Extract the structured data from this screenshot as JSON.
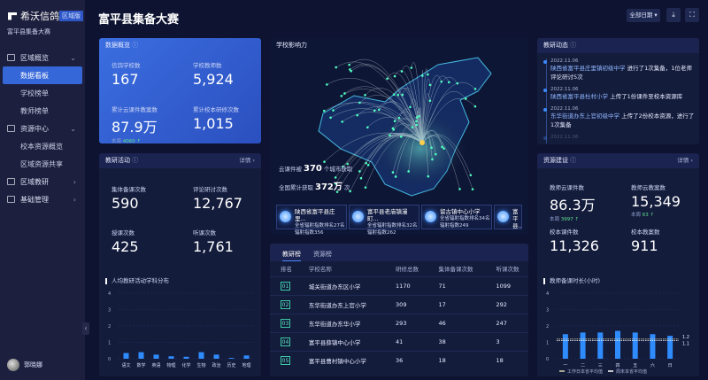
{
  "sidebar": {
    "brand": "希沃信鸽",
    "badge": "区域版",
    "subtitle": "富平县集备大赛",
    "groups": [
      {
        "label": "区域概览",
        "icon": "monitor-icon",
        "expanded": true,
        "items": [
          "数据看板",
          "学校榜单",
          "教师榜单"
        ]
      },
      {
        "label": "资源中心",
        "icon": "book-icon",
        "expanded": true,
        "items": [
          "校本资源概览",
          "区域资源共享"
        ]
      },
      {
        "label": "区域教研",
        "icon": "presenter-icon",
        "expanded": false,
        "items": []
      },
      {
        "label": "基础管理",
        "icon": "org-icon",
        "expanded": false,
        "items": []
      }
    ],
    "active_item": "数据看板",
    "user": "郭晓娜"
  },
  "header": {
    "title": "富平县集备大赛",
    "date_filter": "全部日期"
  },
  "overview": {
    "title": "数据概览",
    "stats": [
      {
        "label": "信鸽学校数",
        "value": "167"
      },
      {
        "label": "学校教师数",
        "value": "5,924"
      },
      {
        "label": "累计云课件教案数",
        "value": "87.9万",
        "week_label": "本周",
        "week_value": "4060"
      },
      {
        "label": "累计校本研修次数",
        "value": "1,015"
      }
    ]
  },
  "activity": {
    "title": "教研活动",
    "more": "详情",
    "stats": [
      {
        "label": "集体备课次数",
        "value": "590"
      },
      {
        "label": "评论研讨次数",
        "value": "12,767"
      },
      {
        "label": "授课次数",
        "value": "425"
      },
      {
        "label": "听课次数",
        "value": "1,761"
      }
    ]
  },
  "influence": {
    "title": "学校影响力",
    "city_prefix": "云课件被",
    "city_count": "370",
    "city_suffix": "个城市获取",
    "total_prefix": "全国累计获取",
    "total_count": "372万",
    "total_suffix": "次",
    "cards": [
      {
        "name": "陕西省富平县庄里...",
        "rank": "全省辐射指数排名27名",
        "index": "辐射指数356"
      },
      {
        "name": "富平县老庙镇漫町...",
        "rank": "全省辐射指数排名32名",
        "index": "辐射指数262"
      },
      {
        "name": "留古镇中心小学",
        "rank": "全省辐射指数排名34名",
        "index": "辐射指数249"
      },
      {
        "name": "富平县...",
        "rank": "全省...",
        "index": "..."
      }
    ]
  },
  "ranking": {
    "tabs": [
      "教研榜",
      "资源榜"
    ],
    "active_tab": "教研榜",
    "columns": [
      "排名",
      "学校名称",
      "研修总数",
      "集体备课次数",
      "听课次数"
    ],
    "rows": [
      [
        "01",
        "城关街道办东区小学",
        "1170",
        "71",
        "1099"
      ],
      [
        "02",
        "东华街道办东上官小学",
        "309",
        "17",
        "292"
      ],
      [
        "03",
        "东华街道办东华小学",
        "293",
        "46",
        "247"
      ],
      [
        "04",
        "富平县薛镇中心小学",
        "41",
        "38",
        "3"
      ],
      [
        "05",
        "富平县曹村镇中心小学",
        "36",
        "18",
        "18"
      ]
    ]
  },
  "news": {
    "title": "教研动态",
    "items": [
      {
        "date": "2022.11.06",
        "school": "陕西省富平县庄里镇初级中学",
        "text": " 进行了1次集备，1位老师评论研讨5次"
      },
      {
        "date": "2022.11.06",
        "school": "陕西省富平县杜村小学",
        "text": " 上传了1份课件至校本资源库"
      },
      {
        "date": "2022.11.06",
        "school": "东华街道办东上官初级中学",
        "text": " 上传了2份校本资源，进行了1次集备"
      },
      {
        "date": "2022.11.06",
        "school": "",
        "text": ""
      }
    ]
  },
  "resources": {
    "title": "资源建设",
    "more": "详情",
    "stats": [
      {
        "label": "教师云课件数",
        "value": "86.3万",
        "week_label": "本周",
        "week_value": "3997"
      },
      {
        "label": "教师云教案数",
        "value": "15,349",
        "week_label": "本周",
        "week_value": "63"
      },
      {
        "label": "校本课件数",
        "value": "11,326"
      },
      {
        "label": "校本教案数",
        "value": "911"
      }
    ]
  },
  "chart_data": [
    {
      "type": "bar",
      "title": "人均教研活动学科分布",
      "categories": [
        "语文",
        "数学",
        "英语",
        "物理",
        "化学",
        "生物",
        "政治",
        "历史",
        "地理"
      ],
      "values": [
        0.35,
        0.4,
        0.25,
        0.15,
        0.12,
        0.4,
        0.25,
        0.05,
        0.2
      ],
      "ylim": [
        0,
        4
      ],
      "yticks": [
        "0",
        "1",
        "2",
        "3",
        "4"
      ],
      "grid": true,
      "color": "#2f8cff"
    },
    {
      "type": "bar",
      "title": "教师备课时长(小时)",
      "categories": [
        "一",
        "二",
        "三",
        "四",
        "五",
        "六",
        "日"
      ],
      "values": [
        1.5,
        1.6,
        1.6,
        1.7,
        1.6,
        1.5,
        1.4
      ],
      "ylim": [
        0,
        4
      ],
      "yticks": [
        "0",
        "1",
        "2",
        "3",
        "4"
      ],
      "grid": true,
      "color": "#2f8cff",
      "reference_lines": [
        {
          "name": "工作日本省平均值",
          "value": 1.2,
          "label": "1.2"
        },
        {
          "name": "周末本省平均值",
          "value": 1.1,
          "label": "1.1"
        }
      ],
      "legend": "bottom"
    }
  ]
}
